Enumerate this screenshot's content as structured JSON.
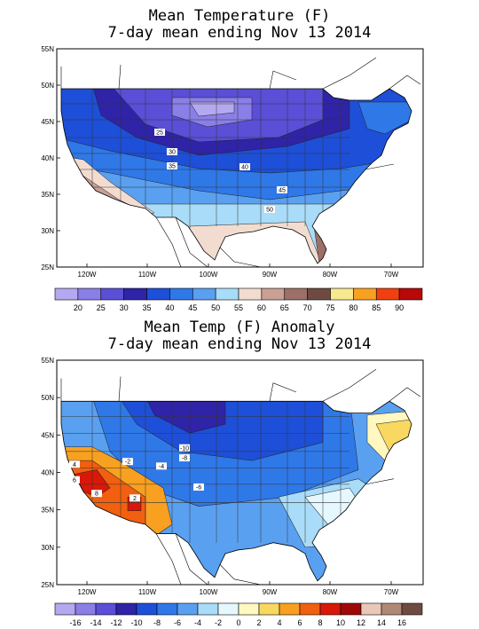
{
  "maps": [
    {
      "title_line1": "Mean Temperature (F)",
      "title_line2": "7-day mean ending Nov 13 2014",
      "lat_labels": [
        "55N",
        "50N",
        "45N",
        "40N",
        "35N",
        "30N",
        "25N"
      ],
      "lon_labels": [
        "120W",
        "110W",
        "100W",
        "90W",
        "80W",
        "70W"
      ],
      "contour_labels": [
        "25",
        "30",
        "35",
        "40",
        "45",
        "50"
      ],
      "colorbar": {
        "labels": [
          "20",
          "25",
          "30",
          "35",
          "40",
          "45",
          "50",
          "55",
          "60",
          "65",
          "70",
          "75",
          "80",
          "85",
          "90"
        ],
        "colors": [
          "#b4a9f0",
          "#8a7fe6",
          "#5a4fd6",
          "#2f23a8",
          "#1e4fd8",
          "#2f78e8",
          "#5aa0f0",
          "#a8dcf8",
          "#f2dcd0",
          "#c8a095",
          "#9c7068",
          "#6e4a42",
          "#f8e890",
          "#f8a020",
          "#f04010",
          "#b80808"
        ]
      }
    },
    {
      "title_line1": "Mean Temp (F) Anomaly",
      "title_line2": "7-day mean ending Nov 13 2014",
      "lat_labels": [
        "55N",
        "50N",
        "45N",
        "40N",
        "35N",
        "30N",
        "25N"
      ],
      "lon_labels": [
        "120W",
        "110W",
        "100W",
        "90W",
        "80W",
        "70W"
      ],
      "contour_labels": [
        "-10",
        "-8",
        "-6",
        "-4",
        "-2",
        "2",
        "4",
        "6",
        "8"
      ],
      "colorbar": {
        "labels": [
          "-16",
          "-14",
          "-12",
          "-10",
          "-8",
          "-6",
          "-4",
          "-2",
          "0",
          "2",
          "4",
          "6",
          "8",
          "10",
          "12",
          "14",
          "16"
        ],
        "colors": [
          "#b4a9f0",
          "#8a7fe6",
          "#5a4fd6",
          "#2f23a8",
          "#1e4fd8",
          "#2f78e8",
          "#5aa0f0",
          "#a8dcf8",
          "#e6f8ff",
          "#fff8c0",
          "#f8d860",
          "#f8a020",
          "#f06010",
          "#d81808",
          "#a00808",
          "#e8c8b8",
          "#b08878",
          "#6e4a42"
        ]
      }
    }
  ],
  "icons": [
    "us-state-boundaries-icon"
  ]
}
